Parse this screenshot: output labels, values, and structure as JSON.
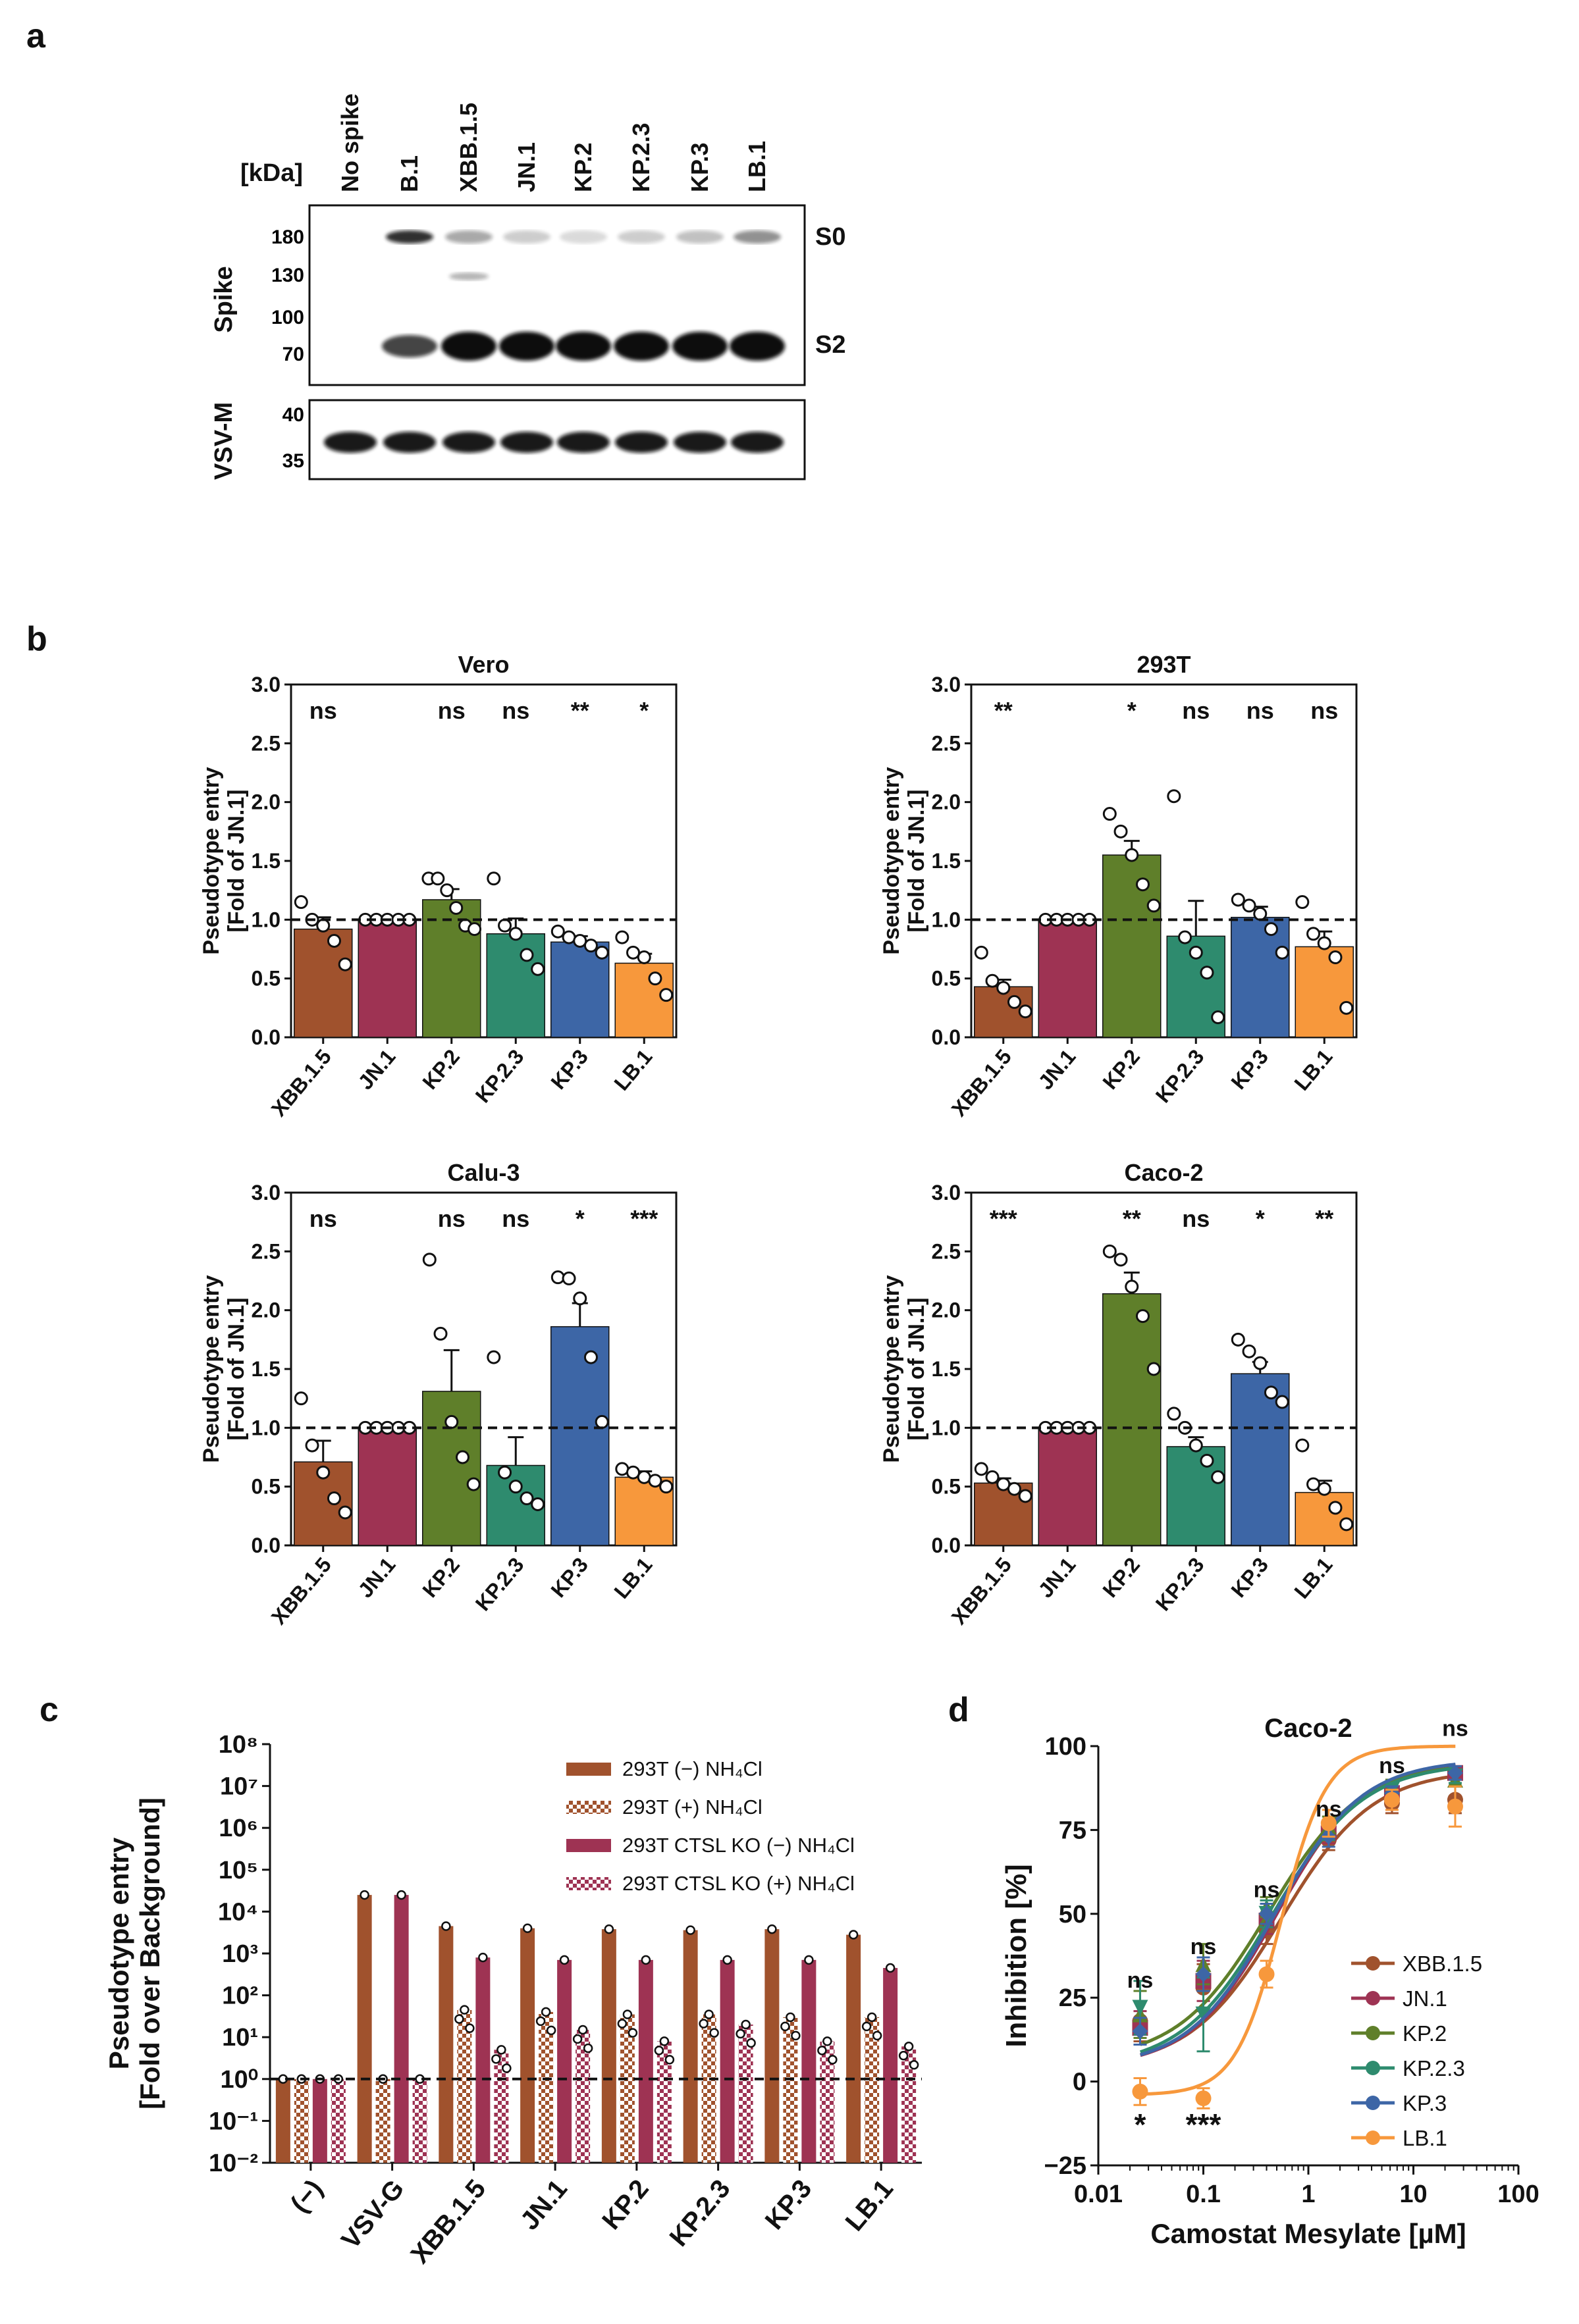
{
  "colors": {
    "XBB.1.5": "#A0522D",
    "JN.1": "#9E3353",
    "KP.2": "#5F7F2A",
    "KP.2.3": "#2E8B6E",
    "KP.3": "#3D66A6",
    "LB.1": "#F7983C",
    "white": "#ffffff",
    "black": "#111111"
  },
  "panel_a": {
    "label": "a",
    "kda_label": "[kDa]",
    "lanes": [
      "No spike",
      "B.1",
      "XBB.1.5",
      "JN.1",
      "KP.2",
      "KP.2.3",
      "KP.3",
      "LB.1"
    ],
    "spike_label": "Spike",
    "vsvm_label": "VSV-M",
    "spike_markers": [
      "180",
      "130",
      "100",
      "70"
    ],
    "vsvm_markers": [
      "40",
      "35"
    ],
    "band_s0": "S0",
    "band_s2": "S2"
  },
  "panel_b": {
    "label": "b",
    "ylabel_line1": "Pseudotype entry",
    "ylabel_line2": "[Fold of JN.1]"
  },
  "panel_c": {
    "label": "c",
    "ylabel_line1": "Pseudotype entry",
    "ylabel_line2": "[Fold over Background]",
    "legend": [
      {
        "name": "293T (−) NH₄Cl",
        "style": "solid",
        "color": "#A0522D"
      },
      {
        "name": "293T (+) NH₄Cl",
        "style": "checker",
        "color": "#A0522D"
      },
      {
        "name": "293T CTSL KO (−) NH₄Cl",
        "style": "solid",
        "color": "#9E3353"
      },
      {
        "name": "293T CTSL KO (+) NH₄Cl",
        "style": "checker",
        "color": "#9E3353"
      }
    ]
  },
  "panel_d": {
    "label": "d"
  },
  "chart_data": [
    {
      "type": "bar",
      "title": "Vero",
      "categories": [
        "XBB.1.5",
        "JN.1",
        "KP.2",
        "KP.2.3",
        "KP.3",
        "LB.1"
      ],
      "values": [
        0.92,
        1.0,
        1.17,
        0.88,
        0.81,
        0.63
      ],
      "errors": [
        0.1,
        0.0,
        0.09,
        0.13,
        0.05,
        0.08
      ],
      "points": [
        [
          1.15,
          1.0,
          0.95,
          0.82,
          0.62
        ],
        [
          1.0,
          1.0,
          1.0,
          1.0,
          1.0
        ],
        [
          1.35,
          1.35,
          1.25,
          1.1,
          0.95,
          0.92
        ],
        [
          1.35,
          0.95,
          0.88,
          0.7,
          0.58
        ],
        [
          0.9,
          0.85,
          0.82,
          0.78,
          0.72
        ],
        [
          0.85,
          0.72,
          0.68,
          0.5,
          0.36
        ]
      ],
      "significance": [
        "ns",
        "",
        "ns",
        "ns",
        "**",
        "*"
      ],
      "ylabel": "Pseudotype entry [Fold of JN.1]",
      "ylim": [
        0,
        3
      ],
      "yticks": [
        "0.0",
        "0.5",
        "1.0",
        "1.5",
        "2.0",
        "2.5",
        "3.0"
      ],
      "reference_line": 1.0
    },
    {
      "type": "bar",
      "title": "293T",
      "categories": [
        "XBB.1.5",
        "JN.1",
        "KP.2",
        "KP.2.3",
        "KP.3",
        "LB.1"
      ],
      "values": [
        0.43,
        1.0,
        1.55,
        0.86,
        1.02,
        0.77
      ],
      "errors": [
        0.06,
        0.0,
        0.12,
        0.3,
        0.09,
        0.13
      ],
      "points": [
        [
          0.72,
          0.48,
          0.42,
          0.3,
          0.22
        ],
        [
          1.0,
          1.0,
          1.0,
          1.0,
          1.0
        ],
        [
          1.9,
          1.75,
          1.55,
          1.3,
          1.12
        ],
        [
          2.05,
          0.85,
          0.72,
          0.55,
          0.17
        ],
        [
          1.17,
          1.12,
          1.05,
          0.92,
          0.72
        ],
        [
          1.15,
          0.88,
          0.8,
          0.68,
          0.25
        ]
      ],
      "significance": [
        "**",
        "",
        "*",
        "ns",
        "ns",
        "ns"
      ],
      "ylabel": "Pseudotype entry [Fold of JN.1]",
      "ylim": [
        0,
        3
      ],
      "yticks": [
        "0.0",
        "0.5",
        "1.0",
        "1.5",
        "2.0",
        "2.5",
        "3.0"
      ],
      "reference_line": 1.0
    },
    {
      "type": "bar",
      "title": "Calu-3",
      "categories": [
        "XBB.1.5",
        "JN.1",
        "KP.2",
        "KP.2.3",
        "KP.3",
        "LB.1"
      ],
      "values": [
        0.71,
        1.0,
        1.31,
        0.68,
        1.86,
        0.58
      ],
      "errors": [
        0.18,
        0.0,
        0.35,
        0.24,
        0.2,
        0.05
      ],
      "points": [
        [
          1.25,
          0.85,
          0.62,
          0.4,
          0.28
        ],
        [
          1.0,
          1.0,
          1.0,
          1.0,
          1.0
        ],
        [
          2.43,
          1.8,
          1.05,
          0.75,
          0.52
        ],
        [
          1.6,
          0.62,
          0.5,
          0.4,
          0.35
        ],
        [
          2.28,
          2.27,
          2.1,
          1.6,
          1.05
        ],
        [
          0.65,
          0.62,
          0.58,
          0.55,
          0.5
        ]
      ],
      "significance": [
        "ns",
        "",
        "ns",
        "ns",
        "*",
        "***"
      ],
      "ylabel": "Pseudotype entry [Fold of JN.1]",
      "ylim": [
        0,
        3
      ],
      "yticks": [
        "0.0",
        "0.5",
        "1.0",
        "1.5",
        "2.0",
        "2.5",
        "3.0"
      ],
      "reference_line": 1.0
    },
    {
      "type": "bar",
      "title": "Caco-2",
      "categories": [
        "XBB.1.5",
        "JN.1",
        "KP.2",
        "KP.2.3",
        "KP.3",
        "LB.1"
      ],
      "values": [
        0.53,
        1.0,
        2.14,
        0.84,
        1.46,
        0.45
      ],
      "errors": [
        0.04,
        0.0,
        0.18,
        0.08,
        0.1,
        0.1
      ],
      "points": [
        [
          0.65,
          0.58,
          0.52,
          0.48,
          0.42
        ],
        [
          1.0,
          1.0,
          1.0,
          1.0,
          1.0
        ],
        [
          2.5,
          2.43,
          2.2,
          1.95,
          1.5
        ],
        [
          1.12,
          1.0,
          0.85,
          0.72,
          0.58
        ],
        [
          1.75,
          1.65,
          1.55,
          1.3,
          1.22
        ],
        [
          0.85,
          0.52,
          0.48,
          0.32,
          0.18
        ]
      ],
      "significance": [
        "***",
        "",
        "**",
        "ns",
        "*",
        "**"
      ],
      "ylabel": "Pseudotype entry [Fold of JN.1]",
      "ylim": [
        0,
        3
      ],
      "yticks": [
        "0.0",
        "0.5",
        "1.0",
        "1.5",
        "2.0",
        "2.5",
        "3.0"
      ],
      "reference_line": 1.0
    },
    {
      "type": "bar",
      "title": "",
      "yscale": "log10",
      "categories": [
        "(−)",
        "VSV-G",
        "XBB.1.5",
        "JN.1",
        "KP.2",
        "KP.2.3",
        "KP.3",
        "LB.1"
      ],
      "series": [
        {
          "name": "293T (−) NH₄Cl",
          "values": [
            1,
            25000,
            4500,
            4000,
            3800,
            3600,
            3800,
            2800
          ]
        },
        {
          "name": "293T (+) NH₄Cl",
          "values": [
            1,
            1,
            45,
            40,
            35,
            35,
            30,
            30
          ]
        },
        {
          "name": "293T CTSL KO (−) NH₄Cl",
          "values": [
            1,
            25000,
            800,
            700,
            700,
            700,
            700,
            450
          ]
        },
        {
          "name": "293T CTSL KO (+) NH₄Cl",
          "values": [
            1,
            1,
            5,
            15,
            8,
            20,
            8,
            6
          ]
        }
      ],
      "ylabel": "Pseudotype entry [Fold over Background]",
      "ylim": [
        "10⁻²",
        "10⁸"
      ],
      "yticks": [
        "10⁻²",
        "10⁻¹",
        "10⁰",
        "10¹",
        "10²",
        "10³",
        "10⁴",
        "10⁵",
        "10⁶",
        "10⁷",
        "10⁸"
      ],
      "reference_line": 1
    },
    {
      "type": "line",
      "title": "Caco-2",
      "xscale": "log10",
      "xlabel": "Camostat Mesylate [µM]",
      "ylabel": "Inhibition [%]",
      "xlim": [
        0.01,
        100
      ],
      "ylim": [
        -25,
        100
      ],
      "xticks": [
        "0.01",
        "0.1",
        "1",
        "10",
        "100"
      ],
      "yticks": [
        "−25",
        "0",
        "25",
        "50",
        "75",
        "100"
      ],
      "x": [
        0.025,
        0.1,
        0.4,
        1.56,
        6.25,
        25
      ],
      "series": [
        {
          "name": "XBB.1.5",
          "values": [
            18,
            28,
            45,
            72,
            83,
            84
          ],
          "errors": [
            6,
            7,
            4,
            3,
            3,
            4
          ]
        },
        {
          "name": "JN.1",
          "values": [
            16,
            30,
            48,
            74,
            86,
            92
          ],
          "errors": [
            5,
            6,
            4,
            3,
            2,
            2
          ]
        },
        {
          "name": "KP.2",
          "values": [
            20,
            35,
            52,
            76,
            88,
            90
          ],
          "errors": [
            7,
            6,
            3,
            3,
            2,
            2
          ]
        },
        {
          "name": "KP.2.3",
          "values": [
            22,
            20,
            50,
            75,
            87,
            91
          ],
          "errors": [
            8,
            11,
            4,
            3,
            2,
            2
          ]
        },
        {
          "name": "KP.3",
          "values": [
            15,
            32,
            50,
            73,
            86,
            92
          ],
          "errors": [
            4,
            5,
            3,
            3,
            2,
            2
          ]
        },
        {
          "name": "LB.1",
          "values": [
            -3,
            -5,
            32,
            77,
            84,
            82
          ],
          "errors": [
            4,
            3,
            4,
            4,
            3,
            6
          ]
        }
      ],
      "significance": [
        {
          "x": 0.025,
          "label": "ns"
        },
        {
          "x": 0.1,
          "label": "ns"
        },
        {
          "x": 0.4,
          "label": "ns"
        },
        {
          "x": 1.56,
          "label": "ns"
        },
        {
          "x": 6.25,
          "label": "ns"
        },
        {
          "x": 25,
          "label": "ns"
        }
      ],
      "significance_low": [
        {
          "x": 0.025,
          "label": "*"
        },
        {
          "x": 0.1,
          "label": "***"
        }
      ]
    }
  ]
}
